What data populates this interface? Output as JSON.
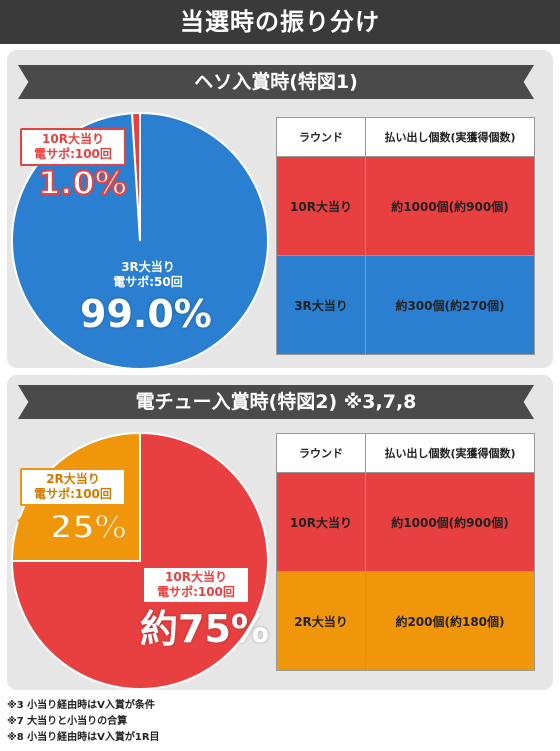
{
  "header": {
    "title": "当選時の振り分け"
  },
  "sections": [
    {
      "heading": "ヘソ入賞時(特図1)",
      "pie": [
        {
          "label_line1": "10R大当り",
          "label_line2": "電サポ:100回",
          "percent_text": "1.0%",
          "value": 1.0,
          "color": "#e84040"
        },
        {
          "label_line1": "3R大当り",
          "label_line2": "電サポ:50回",
          "percent_text": "99.0%",
          "value": 99.0,
          "color": "#2a7fd0"
        }
      ],
      "table": {
        "headers": [
          "ラウンド",
          "払い出し個数(実獲得個数)"
        ],
        "rows": [
          {
            "round": "10R大当り",
            "payout": "約1000個(約900個)",
            "color": "#e84040"
          },
          {
            "round": "3R大当り",
            "payout": "約300個(約270個)",
            "color": "#2a7fd0"
          }
        ]
      }
    },
    {
      "heading": "電チュー入賞時(特図2) ※3,7,8",
      "pie": [
        {
          "label_line1": "2R大当り",
          "label_line2": "電サポ:100回",
          "percent_text": "約25%",
          "value": 25,
          "color": "#f0960a"
        },
        {
          "label_line1": "10R大当り",
          "label_line2": "電サポ:100回",
          "percent_text": "約75%",
          "value": 75,
          "color": "#e84040"
        }
      ],
      "table": {
        "headers": [
          "ラウンド",
          "払い出し個数(実獲得個数)"
        ],
        "rows": [
          {
            "round": "10R大当り",
            "payout": "約1000個(約900個)",
            "color": "#e84040"
          },
          {
            "round": "2R大当り",
            "payout": "約200個(約180個)",
            "color": "#f0960a"
          }
        ]
      }
    }
  ],
  "notes": [
    "※3 小当り経由時はV入賞が条件",
    "※7 大当りと小当りの合算",
    "※8 小当り経由時はV入賞が1R目"
  ]
}
